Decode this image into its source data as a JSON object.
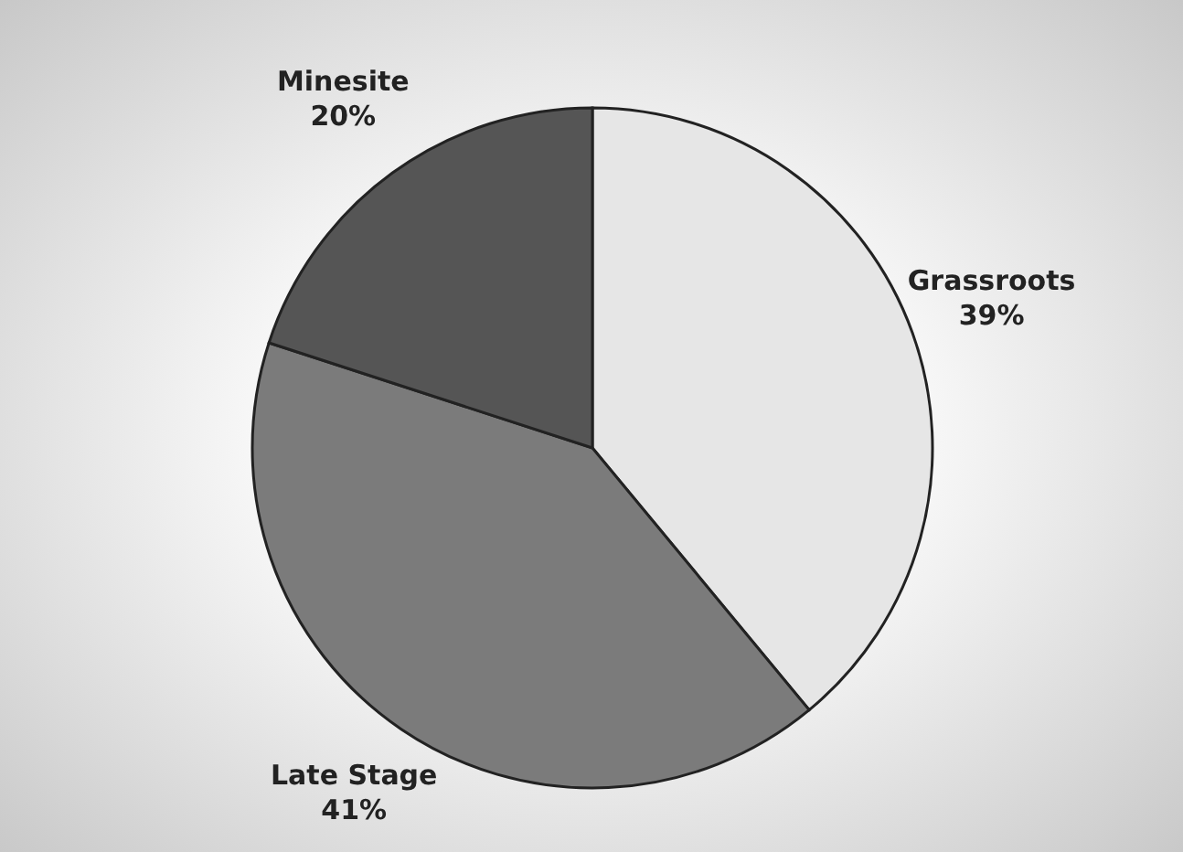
{
  "chart_data": {
    "type": "pie",
    "categories": [
      "Grassroots",
      "Late Stage",
      "Minesite"
    ],
    "values": [
      39,
      41,
      20
    ],
    "value_labels": [
      "39%",
      "41%",
      "20%"
    ],
    "colors": [
      "#e6e6e6",
      "#7b7b7b",
      "#555555"
    ]
  }
}
